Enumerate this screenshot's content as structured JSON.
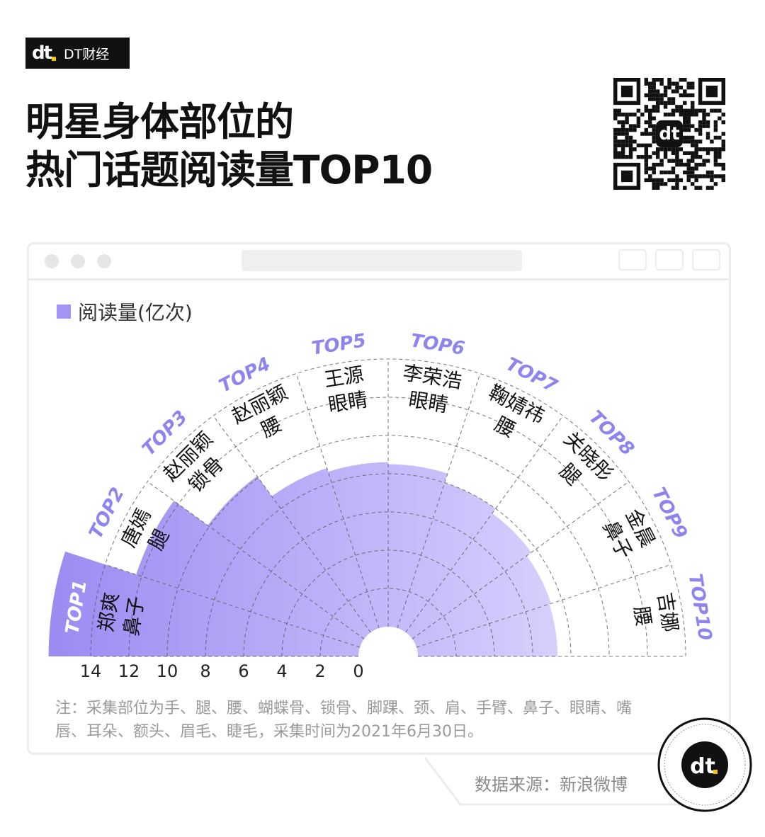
{
  "brand": {
    "mark": "dt",
    "name": "DT财经"
  },
  "title": {
    "line1": "明星身体部位的",
    "line2": "热门话题阅读量TOP10"
  },
  "legend": {
    "label": "阅读量(亿次)",
    "color": "#a394f4"
  },
  "chart_data": {
    "type": "polar-bar",
    "title": "明星身体部位的热门话题阅读量TOP10",
    "legend": "阅读量(亿次)",
    "legend_placement": "top-left",
    "categories": [
      "TOP1",
      "TOP2",
      "TOP3",
      "TOP4",
      "TOP5",
      "TOP6",
      "TOP7",
      "TOP8",
      "TOP9",
      "TOP10"
    ],
    "names": [
      "郑爽",
      "唐嫣",
      "赵丽颖",
      "赵丽颖",
      "王源",
      "李荣浩",
      "鞠婧祎",
      "关晓彤",
      "金晨",
      "吉娜"
    ],
    "parts": [
      "鼻子",
      "腿",
      "锁骨",
      "腰",
      "眼睛",
      "眼睛",
      "腰",
      "腿",
      "鼻子",
      "腰"
    ],
    "values": [
      16.2,
      12.3,
      10.1,
      8.8,
      8.6,
      8.5,
      8.0,
      7.7,
      7.4,
      7.3
    ],
    "radial_ticks": [
      14,
      12,
      10,
      8,
      6,
      4,
      2,
      0
    ],
    "rlim": [
      0,
      14
    ],
    "grid": true,
    "colors": {
      "start": "#9b8bf2",
      "end": "#d7d0fd",
      "top_label": "#8f84ee",
      "grid": "#555555"
    }
  },
  "note": "注：采集部位为手、腿、腰、蝴蝶骨、锁骨、脚踝、颈、肩、手臂、鼻子、眼睛、嘴唇、耳朵、额头、眉毛、睫毛，采集时间为2021年6月30日。",
  "source": "数据来源：新浪微博",
  "logo": {
    "mark": "dt"
  }
}
